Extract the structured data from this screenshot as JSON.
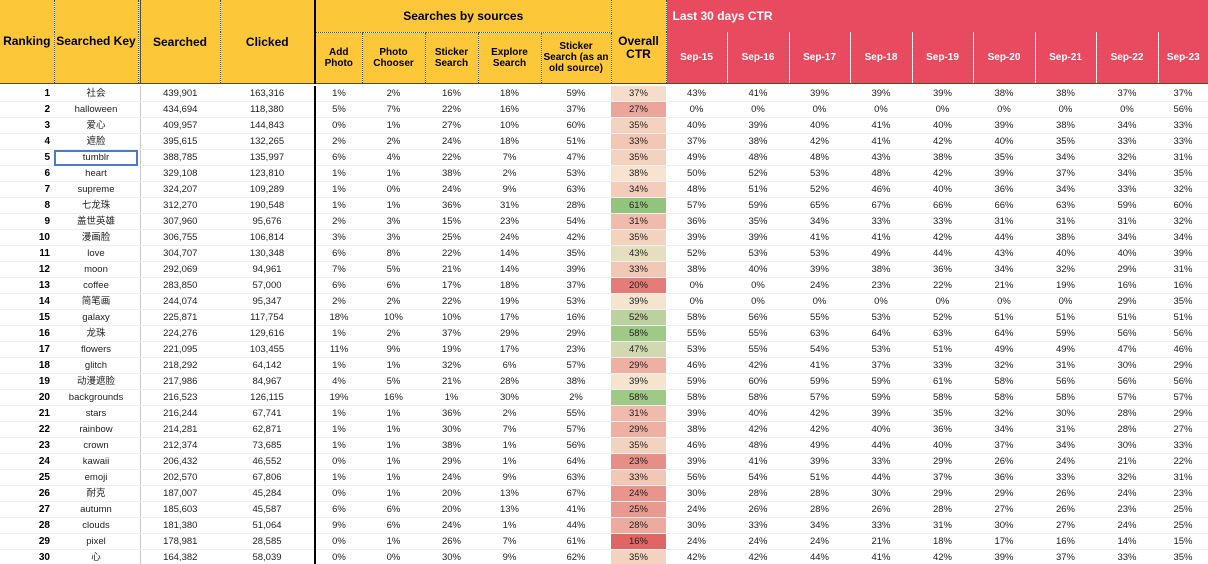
{
  "header": {
    "ranking": "Ranking",
    "searched_key": "Searched Key",
    "searched": "Searched",
    "clicked": "Clicked",
    "sources_group": "Searches by sources",
    "sources": [
      "Add Photo",
      "Photo Chooser",
      "Sticker Search",
      "Explore Search",
      "Sticker Search (as an old source)"
    ],
    "overall_ctr": "Overall CTR",
    "ctr_group": "Last 30 days CTR",
    "days": [
      "Sep-15",
      "Sep-16",
      "Sep-17",
      "Sep-18",
      "Sep-19",
      "Sep-20",
      "Sep-21",
      "Sep-22",
      "Sep-23"
    ]
  },
  "colors": {
    "header_yellow": "#fcc839",
    "header_red": "#e84a5f",
    "ctr_low": "#e06666",
    "ctr_mid": "#f8e6d0",
    "ctr_high": "#93c47d"
  },
  "selected_cell": "tumblr",
  "rows": [
    {
      "rank": "1",
      "key": "社会",
      "searched": "439,901",
      "clicked": "163,316",
      "src": [
        "1%",
        "2%",
        "16%",
        "18%",
        "59%"
      ],
      "ctr": "37%",
      "days": [
        "43%",
        "41%",
        "39%",
        "39%",
        "39%",
        "38%",
        "38%",
        "37%",
        "37%"
      ]
    },
    {
      "rank": "2",
      "key": "halloween",
      "searched": "434,694",
      "clicked": "118,380",
      "src": [
        "5%",
        "7%",
        "22%",
        "16%",
        "37%"
      ],
      "ctr": "27%",
      "days": [
        "0%",
        "0%",
        "0%",
        "0%",
        "0%",
        "0%",
        "0%",
        "0%",
        "56%"
      ]
    },
    {
      "rank": "3",
      "key": "爱心",
      "searched": "409,957",
      "clicked": "144,843",
      "src": [
        "0%",
        "1%",
        "27%",
        "10%",
        "60%"
      ],
      "ctr": "35%",
      "days": [
        "40%",
        "39%",
        "40%",
        "41%",
        "40%",
        "39%",
        "38%",
        "34%",
        "33%"
      ]
    },
    {
      "rank": "4",
      "key": "遮脸",
      "searched": "395,615",
      "clicked": "132,265",
      "src": [
        "2%",
        "2%",
        "24%",
        "18%",
        "51%"
      ],
      "ctr": "33%",
      "days": [
        "37%",
        "38%",
        "42%",
        "41%",
        "42%",
        "40%",
        "35%",
        "33%",
        "33%"
      ]
    },
    {
      "rank": "5",
      "key": "tumblr",
      "searched": "388,785",
      "clicked": "135,997",
      "src": [
        "6%",
        "4%",
        "22%",
        "7%",
        "47%"
      ],
      "ctr": "35%",
      "days": [
        "49%",
        "48%",
        "48%",
        "43%",
        "38%",
        "35%",
        "34%",
        "32%",
        "31%"
      ]
    },
    {
      "rank": "6",
      "key": "heart",
      "searched": "329,108",
      "clicked": "123,810",
      "src": [
        "1%",
        "1%",
        "38%",
        "2%",
        "53%"
      ],
      "ctr": "38%",
      "days": [
        "50%",
        "52%",
        "53%",
        "48%",
        "42%",
        "39%",
        "37%",
        "34%",
        "35%"
      ]
    },
    {
      "rank": "7",
      "key": "supreme",
      "searched": "324,207",
      "clicked": "109,289",
      "src": [
        "1%",
        "0%",
        "24%",
        "9%",
        "63%"
      ],
      "ctr": "34%",
      "days": [
        "48%",
        "51%",
        "52%",
        "46%",
        "40%",
        "36%",
        "34%",
        "33%",
        "32%"
      ]
    },
    {
      "rank": "8",
      "key": "七龙珠",
      "searched": "312,270",
      "clicked": "190,548",
      "src": [
        "1%",
        "1%",
        "36%",
        "31%",
        "28%"
      ],
      "ctr": "61%",
      "days": [
        "57%",
        "59%",
        "65%",
        "67%",
        "66%",
        "66%",
        "63%",
        "59%",
        "60%"
      ]
    },
    {
      "rank": "9",
      "key": "盖世英雄",
      "searched": "307,960",
      "clicked": "95,676",
      "src": [
        "2%",
        "3%",
        "15%",
        "23%",
        "54%"
      ],
      "ctr": "31%",
      "days": [
        "36%",
        "35%",
        "34%",
        "33%",
        "33%",
        "31%",
        "31%",
        "31%",
        "32%"
      ]
    },
    {
      "rank": "10",
      "key": "漫画脸",
      "searched": "306,755",
      "clicked": "106,814",
      "src": [
        "3%",
        "3%",
        "25%",
        "24%",
        "42%"
      ],
      "ctr": "35%",
      "days": [
        "39%",
        "39%",
        "41%",
        "41%",
        "42%",
        "44%",
        "38%",
        "34%",
        "34%"
      ]
    },
    {
      "rank": "11",
      "key": "love",
      "searched": "304,707",
      "clicked": "130,348",
      "src": [
        "6%",
        "8%",
        "22%",
        "14%",
        "35%"
      ],
      "ctr": "43%",
      "days": [
        "52%",
        "53%",
        "53%",
        "49%",
        "44%",
        "43%",
        "40%",
        "40%",
        "39%"
      ]
    },
    {
      "rank": "12",
      "key": "moon",
      "searched": "292,069",
      "clicked": "94,961",
      "src": [
        "7%",
        "5%",
        "21%",
        "14%",
        "39%"
      ],
      "ctr": "33%",
      "days": [
        "38%",
        "40%",
        "39%",
        "38%",
        "36%",
        "34%",
        "32%",
        "29%",
        "31%"
      ]
    },
    {
      "rank": "13",
      "key": "coffee",
      "searched": "283,850",
      "clicked": "57,000",
      "src": [
        "6%",
        "6%",
        "17%",
        "18%",
        "37%"
      ],
      "ctr": "20%",
      "days": [
        "0%",
        "0%",
        "24%",
        "23%",
        "22%",
        "21%",
        "19%",
        "16%",
        "16%"
      ]
    },
    {
      "rank": "14",
      "key": "简笔画",
      "searched": "244,074",
      "clicked": "95,347",
      "src": [
        "2%",
        "2%",
        "22%",
        "19%",
        "53%"
      ],
      "ctr": "39%",
      "days": [
        "0%",
        "0%",
        "0%",
        "0%",
        "0%",
        "0%",
        "0%",
        "29%",
        "35%"
      ]
    },
    {
      "rank": "15",
      "key": "galaxy",
      "searched": "225,871",
      "clicked": "117,754",
      "src": [
        "18%",
        "10%",
        "10%",
        "17%",
        "16%"
      ],
      "ctr": "52%",
      "days": [
        "58%",
        "56%",
        "55%",
        "53%",
        "52%",
        "51%",
        "51%",
        "51%",
        "51%"
      ]
    },
    {
      "rank": "16",
      "key": "龙珠",
      "searched": "224,276",
      "clicked": "129,616",
      "src": [
        "1%",
        "2%",
        "37%",
        "29%",
        "29%"
      ],
      "ctr": "58%",
      "days": [
        "55%",
        "55%",
        "63%",
        "64%",
        "63%",
        "64%",
        "59%",
        "56%",
        "56%"
      ]
    },
    {
      "rank": "17",
      "key": "flowers",
      "searched": "221,095",
      "clicked": "103,455",
      "src": [
        "11%",
        "9%",
        "19%",
        "17%",
        "23%"
      ],
      "ctr": "47%",
      "days": [
        "53%",
        "55%",
        "54%",
        "53%",
        "51%",
        "49%",
        "49%",
        "47%",
        "46%"
      ]
    },
    {
      "rank": "18",
      "key": "glitch",
      "searched": "218,292",
      "clicked": "64,142",
      "src": [
        "1%",
        "1%",
        "32%",
        "6%",
        "57%"
      ],
      "ctr": "29%",
      "days": [
        "46%",
        "42%",
        "41%",
        "37%",
        "33%",
        "32%",
        "31%",
        "30%",
        "29%"
      ]
    },
    {
      "rank": "19",
      "key": "动漫遮脸",
      "searched": "217,986",
      "clicked": "84,967",
      "src": [
        "4%",
        "5%",
        "21%",
        "28%",
        "38%"
      ],
      "ctr": "39%",
      "days": [
        "59%",
        "60%",
        "59%",
        "59%",
        "61%",
        "58%",
        "56%",
        "56%",
        "56%"
      ]
    },
    {
      "rank": "20",
      "key": "backgrounds",
      "searched": "216,523",
      "clicked": "126,115",
      "src": [
        "19%",
        "16%",
        "1%",
        "30%",
        "2%"
      ],
      "ctr": "58%",
      "days": [
        "58%",
        "58%",
        "57%",
        "59%",
        "58%",
        "58%",
        "58%",
        "57%",
        "57%"
      ]
    },
    {
      "rank": "21",
      "key": "stars",
      "searched": "216,244",
      "clicked": "67,741",
      "src": [
        "1%",
        "1%",
        "36%",
        "2%",
        "55%"
      ],
      "ctr": "31%",
      "days": [
        "39%",
        "40%",
        "42%",
        "39%",
        "35%",
        "32%",
        "30%",
        "28%",
        "29%"
      ]
    },
    {
      "rank": "22",
      "key": "rainbow",
      "searched": "214,281",
      "clicked": "62,871",
      "src": [
        "1%",
        "1%",
        "30%",
        "7%",
        "57%"
      ],
      "ctr": "29%",
      "days": [
        "38%",
        "42%",
        "42%",
        "40%",
        "36%",
        "34%",
        "31%",
        "28%",
        "27%"
      ]
    },
    {
      "rank": "23",
      "key": "crown",
      "searched": "212,374",
      "clicked": "73,685",
      "src": [
        "1%",
        "1%",
        "38%",
        "1%",
        "56%"
      ],
      "ctr": "35%",
      "days": [
        "46%",
        "48%",
        "49%",
        "44%",
        "40%",
        "37%",
        "34%",
        "30%",
        "33%"
      ]
    },
    {
      "rank": "24",
      "key": "kawaii",
      "searched": "206,432",
      "clicked": "46,552",
      "src": [
        "0%",
        "1%",
        "29%",
        "1%",
        "64%"
      ],
      "ctr": "23%",
      "days": [
        "39%",
        "41%",
        "39%",
        "33%",
        "29%",
        "26%",
        "24%",
        "21%",
        "22%"
      ]
    },
    {
      "rank": "25",
      "key": "emoji",
      "searched": "202,570",
      "clicked": "67,806",
      "src": [
        "1%",
        "1%",
        "24%",
        "9%",
        "63%"
      ],
      "ctr": "33%",
      "days": [
        "56%",
        "54%",
        "51%",
        "44%",
        "37%",
        "36%",
        "33%",
        "32%",
        "31%"
      ]
    },
    {
      "rank": "26",
      "key": "耐克",
      "searched": "187,007",
      "clicked": "45,284",
      "src": [
        "0%",
        "1%",
        "20%",
        "13%",
        "67%"
      ],
      "ctr": "24%",
      "days": [
        "30%",
        "28%",
        "28%",
        "30%",
        "29%",
        "29%",
        "26%",
        "24%",
        "23%"
      ]
    },
    {
      "rank": "27",
      "key": "autumn",
      "searched": "185,603",
      "clicked": "45,587",
      "src": [
        "6%",
        "6%",
        "20%",
        "13%",
        "41%"
      ],
      "ctr": "25%",
      "days": [
        "24%",
        "26%",
        "28%",
        "26%",
        "28%",
        "27%",
        "26%",
        "23%",
        "25%"
      ]
    },
    {
      "rank": "28",
      "key": "clouds",
      "searched": "181,380",
      "clicked": "51,064",
      "src": [
        "9%",
        "6%",
        "24%",
        "1%",
        "44%"
      ],
      "ctr": "28%",
      "days": [
        "30%",
        "33%",
        "34%",
        "33%",
        "31%",
        "30%",
        "27%",
        "24%",
        "25%"
      ]
    },
    {
      "rank": "29",
      "key": "pixel",
      "searched": "178,981",
      "clicked": "28,585",
      "src": [
        "0%",
        "1%",
        "26%",
        "7%",
        "61%"
      ],
      "ctr": "16%",
      "days": [
        "24%",
        "24%",
        "24%",
        "21%",
        "18%",
        "17%",
        "16%",
        "14%",
        "15%"
      ]
    },
    {
      "rank": "30",
      "key": "心",
      "searched": "164,382",
      "clicked": "58,039",
      "src": [
        "0%",
        "0%",
        "30%",
        "9%",
        "62%"
      ],
      "ctr": "35%",
      "days": [
        "42%",
        "42%",
        "44%",
        "41%",
        "42%",
        "39%",
        "37%",
        "33%",
        "35%"
      ]
    }
  ]
}
